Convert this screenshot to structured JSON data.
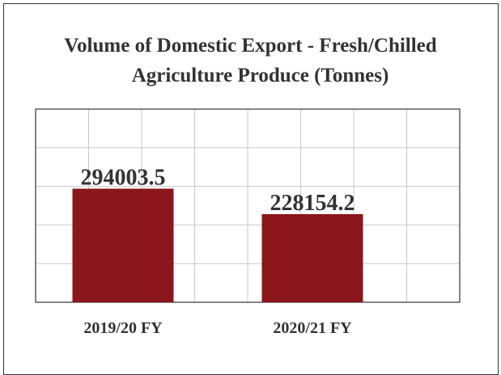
{
  "title_line1": "Volume of Domestic Export - Fresh/Chilled",
  "title_line2": "Agriculture Produce (Tonnes)",
  "chart_data": {
    "type": "bar",
    "title": "Volume of Domestic Export - Fresh/Chilled Agriculture Produce (Tonnes)",
    "categories": [
      "2019/20 FY",
      "2020/21 FY"
    ],
    "values": [
      294003.5,
      228154.2
    ],
    "value_labels": [
      "294003.5",
      "228154.2"
    ],
    "xlabel": "",
    "ylabel": "",
    "ylim": [
      0,
      500000
    ],
    "grid": true,
    "bar_color": "#8b161b",
    "grid_color": "#c8c8c8",
    "axis_color": "#333333"
  }
}
